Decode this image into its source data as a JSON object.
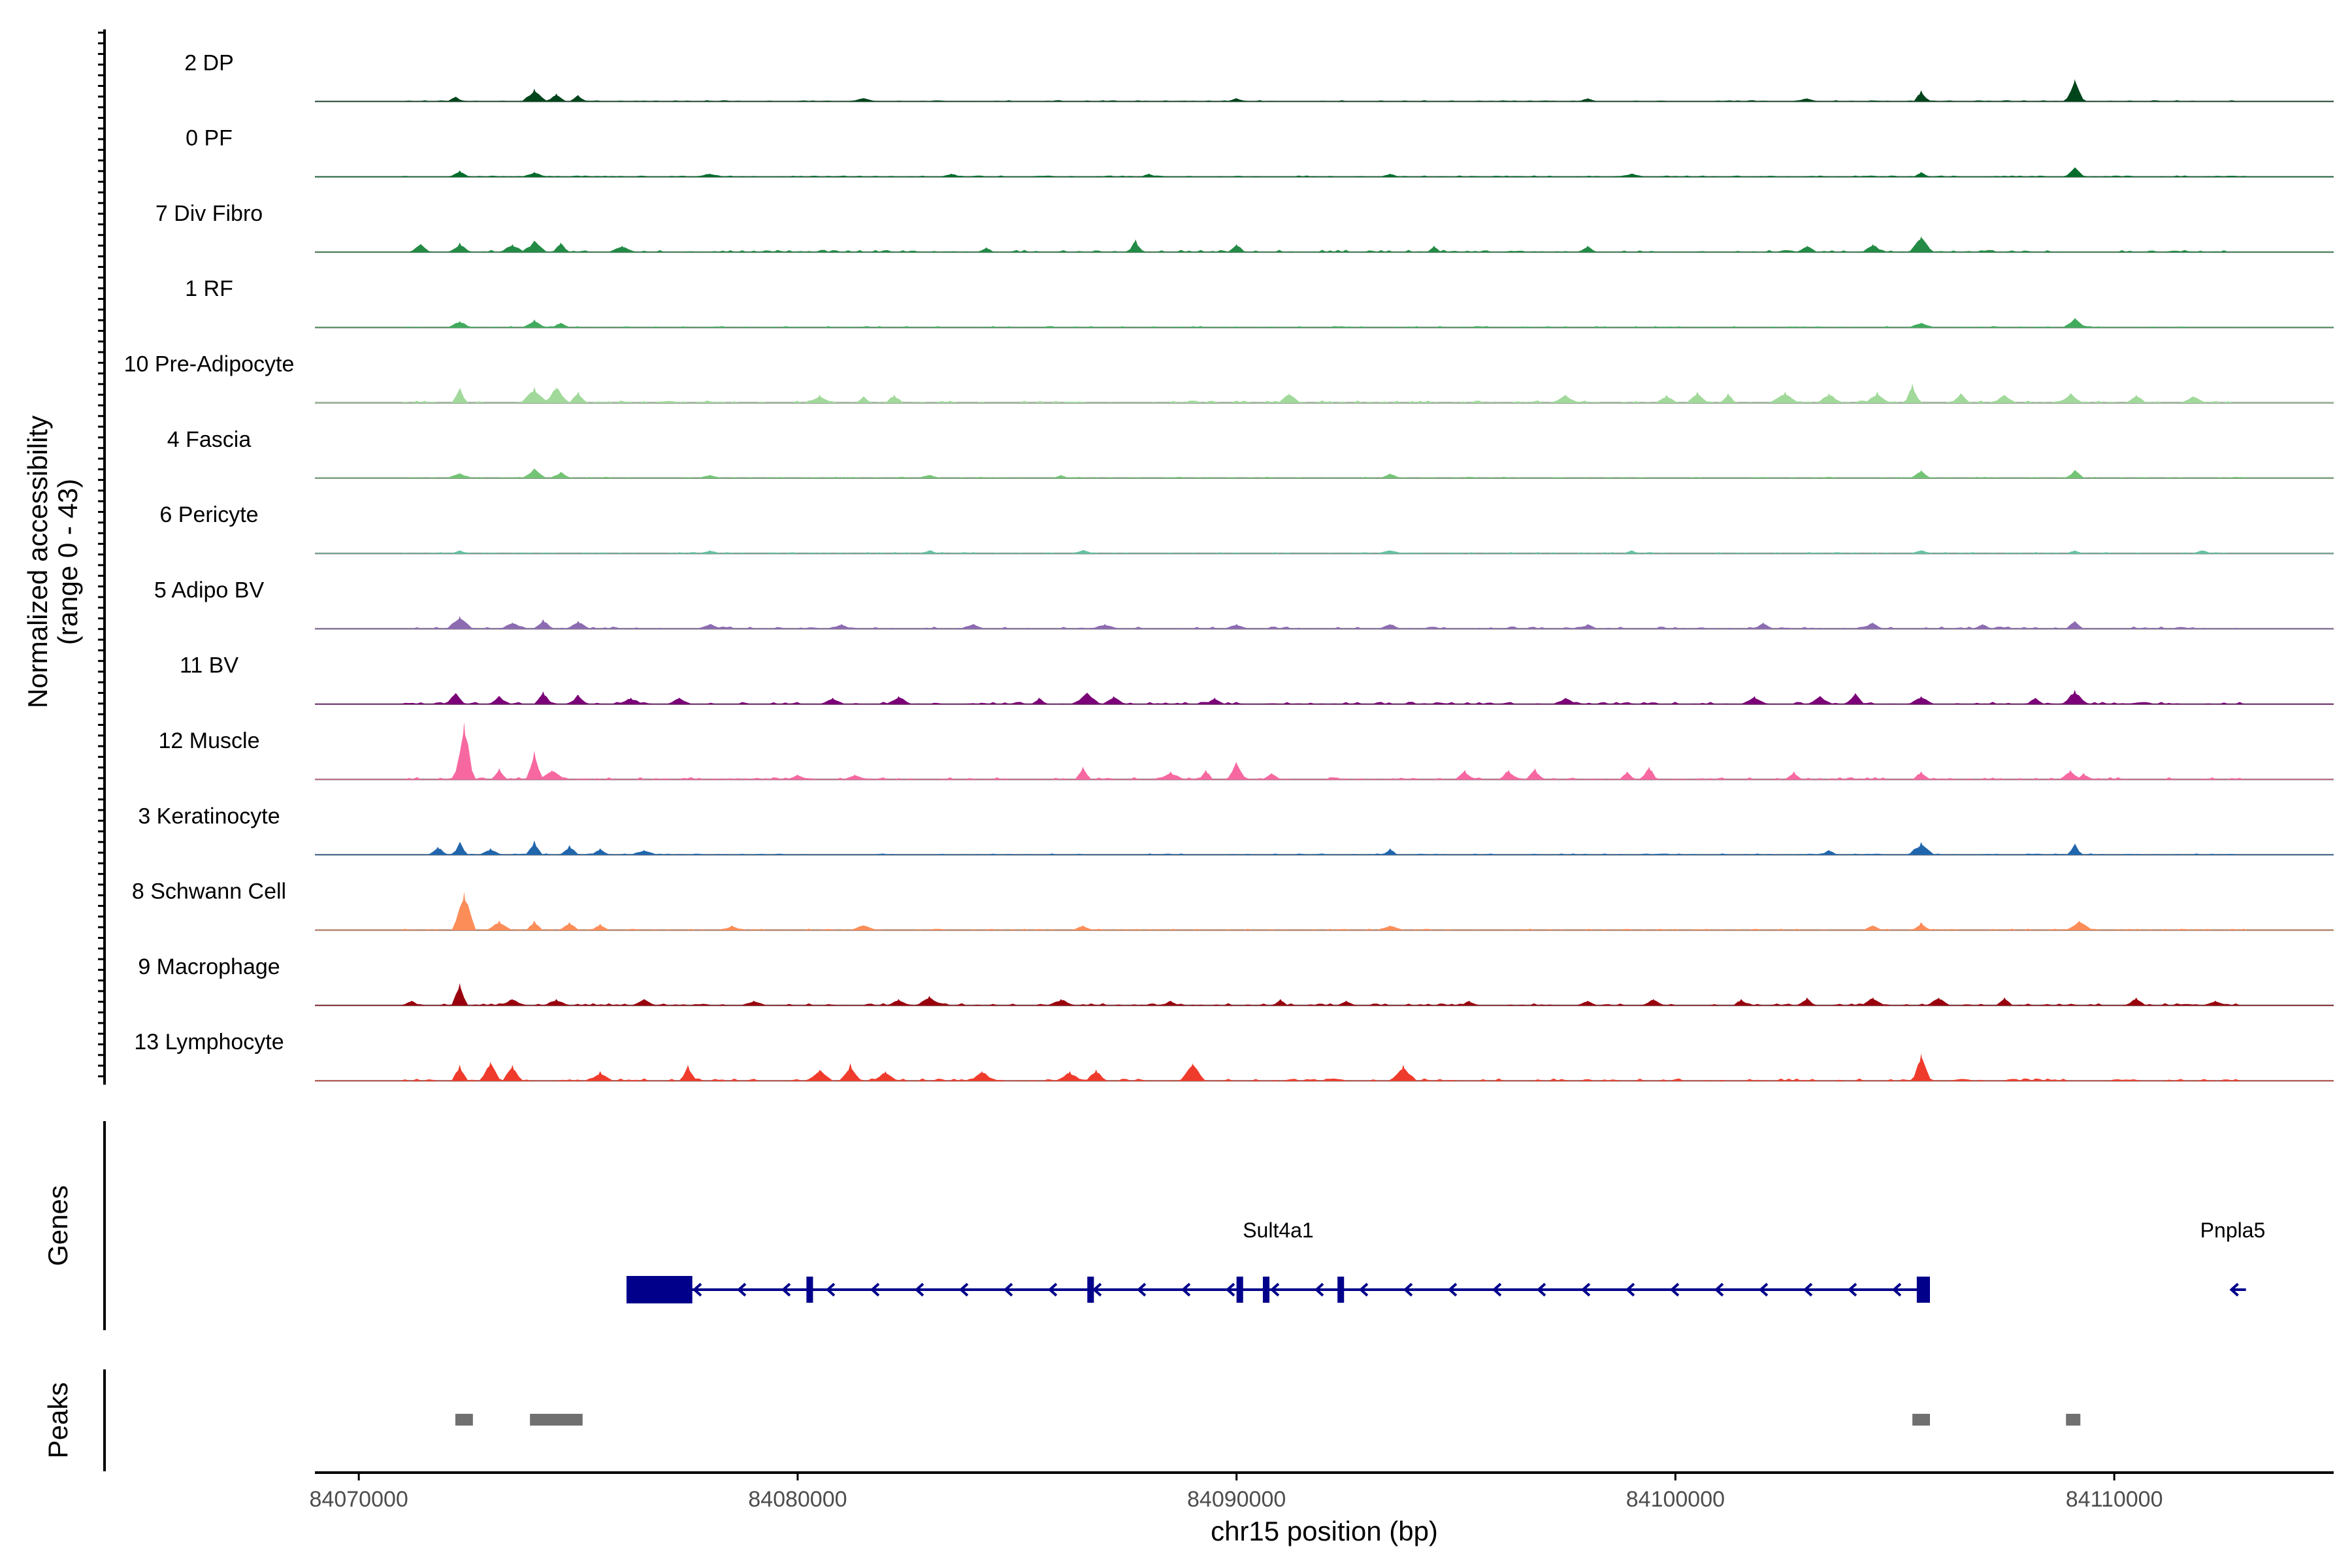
{
  "chart_data": {
    "type": "area",
    "title": "",
    "xlabel": "chr15 position (bp)",
    "ylabel_line1": "Normalized accessibility",
    "ylabel_line2": "(range 0 - 43)",
    "ylim": [
      0,
      43
    ],
    "xlim": [
      84069000,
      84115000
    ],
    "x_ticks": [
      84070000,
      84080000,
      84090000,
      84100000,
      84110000
    ],
    "x_tick_labels": [
      "84070000",
      "84080000",
      "84090000",
      "84100000",
      "84110000"
    ],
    "genes_label": "Genes",
    "peaks_label": "Peaks",
    "tracks": [
      {
        "name": "2 DP",
        "color": "#00441b",
        "peaks": [
          [
            84072200,
            3
          ],
          [
            84074000,
            8
          ],
          [
            84074500,
            5
          ],
          [
            84075000,
            4
          ],
          [
            84081500,
            2
          ],
          [
            84090000,
            2
          ],
          [
            84098000,
            2
          ],
          [
            84103000,
            2
          ],
          [
            84105600,
            7
          ],
          [
            84109100,
            14
          ]
        ]
      },
      {
        "name": "0 PF",
        "color": "#006d2c",
        "peaks": [
          [
            84072300,
            4
          ],
          [
            84074000,
            3
          ],
          [
            84078000,
            2
          ],
          [
            84083500,
            2
          ],
          [
            84088000,
            2
          ],
          [
            84093500,
            2
          ],
          [
            84099000,
            2
          ],
          [
            84105600,
            3
          ],
          [
            84109100,
            6
          ]
        ]
      },
      {
        "name": "7 Div Fibro",
        "color": "#238b45",
        "peaks": [
          [
            84071400,
            5
          ],
          [
            84072300,
            6
          ],
          [
            84073500,
            5
          ],
          [
            84074000,
            7
          ],
          [
            84074600,
            6
          ],
          [
            84076000,
            4
          ],
          [
            84084300,
            3
          ],
          [
            84087700,
            8
          ],
          [
            84090000,
            5
          ],
          [
            84094500,
            4
          ],
          [
            84098000,
            4
          ],
          [
            84103000,
            4
          ],
          [
            84104500,
            5
          ],
          [
            84105600,
            10
          ]
        ]
      },
      {
        "name": "1 RF",
        "color": "#41ab5d",
        "peaks": [
          [
            84072300,
            4
          ],
          [
            84074000,
            5
          ],
          [
            84074600,
            3
          ],
          [
            84105600,
            3
          ],
          [
            84109100,
            6
          ]
        ]
      },
      {
        "name": "10 Pre-Adipocyte",
        "color": "#a1d99b",
        "peaks": [
          [
            84072300,
            9
          ],
          [
            84074000,
            10
          ],
          [
            84074500,
            10
          ],
          [
            84075000,
            7
          ],
          [
            84080500,
            5
          ],
          [
            84081500,
            4
          ],
          [
            84082200,
            5
          ],
          [
            84091200,
            6
          ],
          [
            84097500,
            5
          ],
          [
            84099800,
            5
          ],
          [
            84100500,
            7
          ],
          [
            84101200,
            6
          ],
          [
            84102500,
            7
          ],
          [
            84103500,
            6
          ],
          [
            84104600,
            7
          ],
          [
            84105400,
            12
          ],
          [
            84106500,
            6
          ],
          [
            84107500,
            5
          ],
          [
            84109000,
            6
          ],
          [
            84110500,
            5
          ],
          [
            84111800,
            4
          ]
        ]
      },
      {
        "name": "4 Fascia",
        "color": "#74c476",
        "peaks": [
          [
            84072300,
            3
          ],
          [
            84074000,
            6
          ],
          [
            84074600,
            4
          ],
          [
            84078000,
            2
          ],
          [
            84083000,
            2
          ],
          [
            84086000,
            2
          ],
          [
            84093500,
            3
          ],
          [
            84105600,
            5
          ],
          [
            84109100,
            5
          ]
        ]
      },
      {
        "name": "6 Pericyte",
        "color": "#66c2a4",
        "peaks": [
          [
            84072300,
            2
          ],
          [
            84078000,
            2
          ],
          [
            84083000,
            2
          ],
          [
            84086500,
            2
          ],
          [
            84093500,
            2
          ],
          [
            84099000,
            2
          ],
          [
            84105600,
            2
          ],
          [
            84109100,
            2
          ],
          [
            84112000,
            2
          ]
        ]
      },
      {
        "name": "5 Adipo BV",
        "color": "#8c6bb1",
        "peaks": [
          [
            84072300,
            8
          ],
          [
            84073500,
            4
          ],
          [
            84074200,
            6
          ],
          [
            84075000,
            5
          ],
          [
            84078000,
            3
          ],
          [
            84081000,
            3
          ],
          [
            84084000,
            3
          ],
          [
            84087000,
            3
          ],
          [
            84090000,
            3
          ],
          [
            84093500,
            3
          ],
          [
            84098000,
            3
          ],
          [
            84102000,
            4
          ],
          [
            84104500,
            4
          ],
          [
            84107000,
            3
          ],
          [
            84109100,
            5
          ]
        ]
      },
      {
        "name": "11 BV",
        "color": "#7a0177",
        "peaks": [
          [
            84072200,
            7
          ],
          [
            84073200,
            5
          ],
          [
            84074200,
            8
          ],
          [
            84075000,
            6
          ],
          [
            84076200,
            4
          ],
          [
            84077300,
            4
          ],
          [
            84080800,
            4
          ],
          [
            84082300,
            5
          ],
          [
            84085500,
            4
          ],
          [
            84086600,
            7
          ],
          [
            84087200,
            5
          ],
          [
            84089500,
            4
          ],
          [
            84097500,
            4
          ],
          [
            84101800,
            5
          ],
          [
            84103300,
            5
          ],
          [
            84104100,
            7
          ],
          [
            84105600,
            5
          ],
          [
            84108200,
            4
          ],
          [
            84109100,
            9
          ]
        ]
      },
      {
        "name": "12 Muscle",
        "color": "#f768a1",
        "peaks": [
          [
            84072400,
            36
          ],
          [
            84073200,
            7
          ],
          [
            84074000,
            18
          ],
          [
            84074400,
            6
          ],
          [
            84080000,
            3
          ],
          [
            84081300,
            3
          ],
          [
            84086500,
            8
          ],
          [
            84088500,
            5
          ],
          [
            84089300,
            6
          ],
          [
            84090000,
            11
          ],
          [
            84090800,
            4
          ],
          [
            84095200,
            6
          ],
          [
            84096200,
            6
          ],
          [
            84096800,
            7
          ],
          [
            84098900,
            5
          ],
          [
            84099400,
            8
          ],
          [
            84102700,
            5
          ],
          [
            84105600,
            5
          ],
          [
            84109000,
            6
          ],
          [
            84109300,
            4
          ]
        ]
      },
      {
        "name": "3 Keratinocyte",
        "color": "#2166ac",
        "peaks": [
          [
            84071800,
            5
          ],
          [
            84072300,
            8
          ],
          [
            84073000,
            4
          ],
          [
            84074000,
            9
          ],
          [
            84074800,
            6
          ],
          [
            84075500,
            4
          ],
          [
            84076500,
            3
          ],
          [
            84093500,
            4
          ],
          [
            84103500,
            3
          ],
          [
            84105600,
            8
          ],
          [
            84109100,
            7
          ]
        ]
      },
      {
        "name": "8 Schwann Cell",
        "color": "#fc8d59",
        "peaks": [
          [
            84072400,
            24
          ],
          [
            84073200,
            6
          ],
          [
            84074000,
            6
          ],
          [
            84074800,
            5
          ],
          [
            84075500,
            4
          ],
          [
            84078500,
            3
          ],
          [
            84081500,
            3
          ],
          [
            84086500,
            3
          ],
          [
            84093500,
            3
          ],
          [
            84104500,
            3
          ],
          [
            84105600,
            5
          ],
          [
            84109200,
            6
          ]
        ]
      },
      {
        "name": "9 Macrophage",
        "color": "#99000d",
        "peaks": [
          [
            84071200,
            3
          ],
          [
            84072300,
            14
          ],
          [
            84073500,
            4
          ],
          [
            84074500,
            4
          ],
          [
            84076500,
            4
          ],
          [
            84079000,
            3
          ],
          [
            84082300,
            4
          ],
          [
            84083000,
            6
          ],
          [
            84086000,
            4
          ],
          [
            84088500,
            3
          ],
          [
            84091000,
            4
          ],
          [
            84092500,
            3
          ],
          [
            84095300,
            3
          ],
          [
            84098000,
            3
          ],
          [
            84099500,
            4
          ],
          [
            84101500,
            4
          ],
          [
            84103000,
            5
          ],
          [
            84104500,
            5
          ],
          [
            84106000,
            5
          ],
          [
            84107500,
            5
          ],
          [
            84110500,
            5
          ],
          [
            84112300,
            3
          ]
        ]
      },
      {
        "name": "13 Lymphocyte",
        "color": "#ef3b2c",
        "peaks": [
          [
            84072300,
            10
          ],
          [
            84073000,
            12
          ],
          [
            84073500,
            10
          ],
          [
            84075500,
            6
          ],
          [
            84077500,
            10
          ],
          [
            84080500,
            7
          ],
          [
            84081200,
            11
          ],
          [
            84082000,
            6
          ],
          [
            84084200,
            6
          ],
          [
            84086200,
            6
          ],
          [
            84086800,
            7
          ],
          [
            84089000,
            11
          ],
          [
            84093800,
            10
          ],
          [
            84105600,
            17
          ]
        ]
      }
    ],
    "genes": [
      {
        "name": "Sult4a1",
        "strand": "-",
        "start": 84076100,
        "end": 84105800,
        "color": "#00008b",
        "exons": [
          [
            84076100,
            84077600
          ],
          [
            84080200,
            84080350
          ],
          [
            84086600,
            84086750
          ],
          [
            84090000,
            84090150
          ],
          [
            84090600,
            84090750
          ],
          [
            84092300,
            84092450
          ],
          [
            84105500,
            84105800
          ]
        ]
      },
      {
        "name": "Pnpla5",
        "strand": "-",
        "start": 84112700,
        "end": 84113000,
        "color": "#00008b",
        "exons": []
      }
    ],
    "peak_regions": [
      [
        84072200,
        84072600
      ],
      [
        84073900,
        84075100
      ],
      [
        84105400,
        84105800
      ],
      [
        84108900,
        84109200
      ]
    ]
  }
}
